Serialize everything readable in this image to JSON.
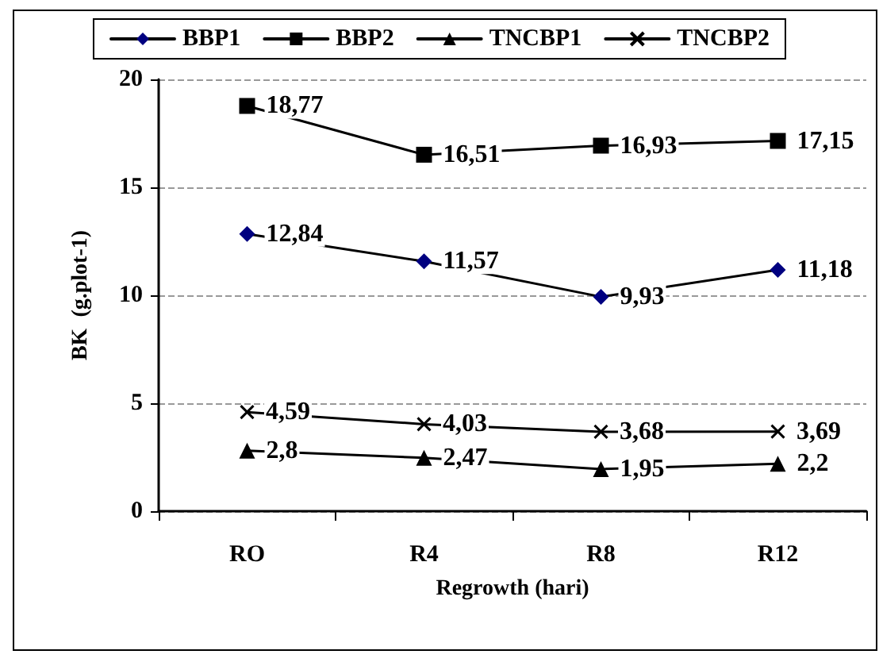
{
  "chart_data": {
    "type": "line",
    "xlabel": "Regrowth (hari)",
    "ylabel": "BK  (g.plot-1)",
    "categories": [
      "RO",
      "R4",
      "R8",
      "R12"
    ],
    "series": [
      {
        "name": "BBP1",
        "color": "#000080",
        "marker": "diamond",
        "values": [
          12.84,
          11.57,
          9.93,
          11.18
        ],
        "value_labels": [
          "12,84",
          "11,57",
          "9,93",
          "11,18"
        ]
      },
      {
        "name": "BBP2",
        "color": "#000000",
        "marker": "square",
        "values": [
          18.77,
          16.51,
          16.93,
          17.15
        ],
        "value_labels": [
          "18,77",
          "16,51",
          "16,93",
          "17,15"
        ]
      },
      {
        "name": "TNCBP1",
        "color": "#000000",
        "marker": "triangle",
        "values": [
          2.8,
          2.47,
          1.95,
          2.2
        ],
        "value_labels": [
          "2,8",
          "2,47",
          "1,95",
          "2,2"
        ]
      },
      {
        "name": "TNCBP2",
        "color": "#000000",
        "marker": "cross",
        "values": [
          4.59,
          4.03,
          3.68,
          3.69
        ],
        "value_labels": [
          "4,59",
          "4,03",
          "3,68",
          "3,69"
        ]
      }
    ],
    "ylim": [
      0,
      20
    ],
    "yticks": [
      0,
      5,
      10,
      15,
      20
    ],
    "grid": "y",
    "legend": "top",
    "line_style": "solid"
  }
}
